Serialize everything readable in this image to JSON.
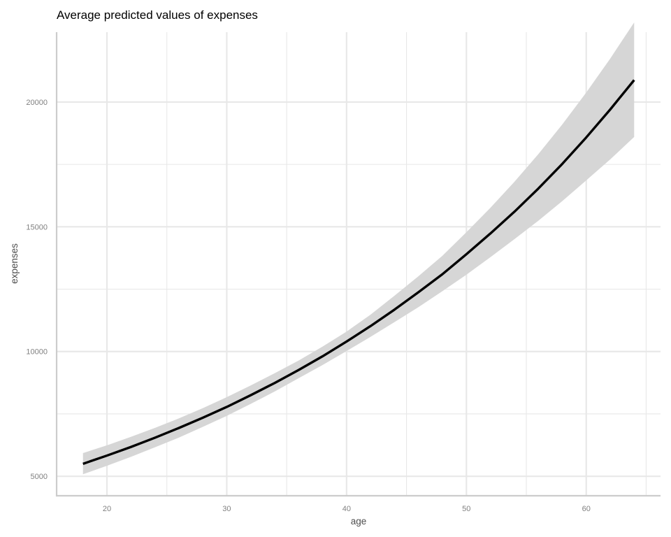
{
  "chart_data": {
    "type": "line",
    "title": "Average predicted values of expenses",
    "xlabel": "age",
    "ylabel": "expenses",
    "xlim": [
      15.8,
      66.2
    ],
    "ylim": [
      4220,
      22800
    ],
    "x_ticks": [
      20,
      30,
      40,
      50,
      60
    ],
    "x_minor_ticks": [
      25,
      35,
      45,
      55,
      65
    ],
    "y_ticks": [
      5000,
      10000,
      15000,
      20000
    ],
    "y_minor_ticks": [
      7500,
      12500,
      17500
    ],
    "grid": true,
    "legend": "none",
    "series": [
      {
        "x": [
          18,
          20,
          22,
          24,
          26,
          28,
          30,
          32,
          34,
          36,
          38,
          40,
          42,
          44,
          46,
          48,
          50,
          52,
          54,
          56,
          58,
          60,
          62,
          64
        ],
        "y": [
          5500,
          5830,
          6175,
          6545,
          6935,
          7345,
          7780,
          8250,
          8740,
          9260,
          9810,
          10400,
          11020,
          11680,
          12380,
          13100,
          13900,
          14730,
          15600,
          16530,
          17520,
          18580,
          19700,
          20880
        ],
        "lower": [
          5080,
          5420,
          5780,
          6160,
          6550,
          6980,
          7420,
          7900,
          8400,
          8930,
          9460,
          10020,
          10590,
          11180,
          11780,
          12420,
          13080,
          13780,
          14500,
          15240,
          16030,
          16860,
          17700,
          18600
        ],
        "upper": [
          5930,
          6240,
          6580,
          6940,
          7320,
          7730,
          8170,
          8640,
          9130,
          9640,
          10200,
          10800,
          11480,
          12240,
          13020,
          13840,
          14780,
          15760,
          16800,
          17910,
          19100,
          20380,
          21740,
          23190
        ]
      }
    ],
    "colors": {
      "line": "#000000",
      "ribbon": "#d6d6d6",
      "grid": "#e8e8e8",
      "axis": "#cccccc"
    }
  }
}
